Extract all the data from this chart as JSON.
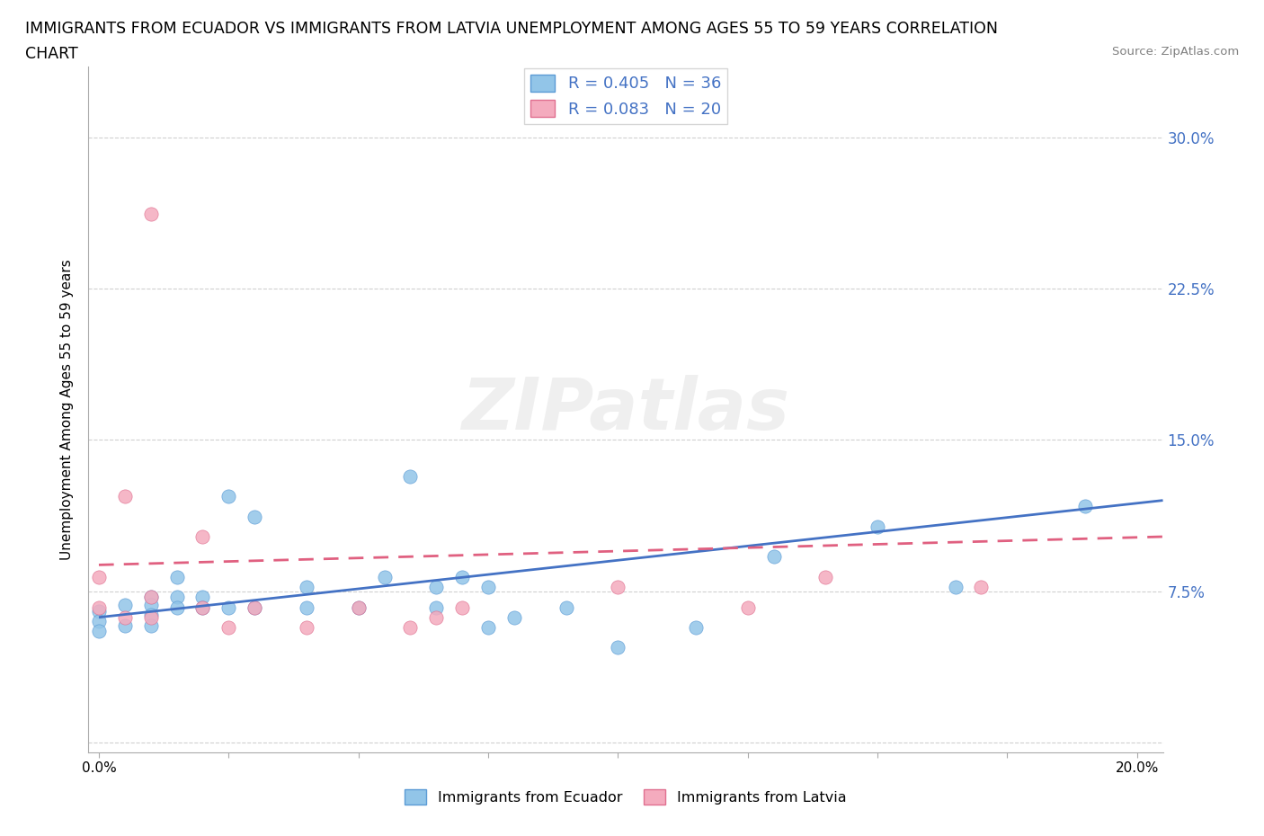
{
  "title_line1": "IMMIGRANTS FROM ECUADOR VS IMMIGRANTS FROM LATVIA UNEMPLOYMENT AMONG AGES 55 TO 59 YEARS CORRELATION",
  "title_line2": "CHART",
  "source": "Source: ZipAtlas.com",
  "ylabel": "Unemployment Among Ages 55 to 59 years",
  "xlim": [
    -0.002,
    0.205
  ],
  "ylim": [
    -0.005,
    0.335
  ],
  "xticks": [
    0.0,
    0.025,
    0.05,
    0.075,
    0.1,
    0.125,
    0.15,
    0.175,
    0.2
  ],
  "xtick_labels_show": [
    0.0,
    0.2
  ],
  "yticks": [
    0.0,
    0.075,
    0.15,
    0.225,
    0.3
  ],
  "ecuador_color": "#92C5E8",
  "ecuador_edge_color": "#5B9BD5",
  "ecuador_line_color": "#4472C4",
  "latvia_color": "#F4ABBE",
  "latvia_edge_color": "#E07090",
  "latvia_line_color": "#E06080",
  "background_color": "#ffffff",
  "grid_color": "#d0d0d0",
  "watermark": "ZIPatlas",
  "ecuador_R": 0.405,
  "ecuador_N": 36,
  "latvia_R": 0.083,
  "latvia_N": 20,
  "ecuador_scatter_x": [
    0.0,
    0.0,
    0.0,
    0.005,
    0.005,
    0.01,
    0.01,
    0.01,
    0.01,
    0.015,
    0.015,
    0.015,
    0.02,
    0.02,
    0.025,
    0.025,
    0.03,
    0.03,
    0.04,
    0.04,
    0.05,
    0.055,
    0.06,
    0.065,
    0.065,
    0.07,
    0.075,
    0.075,
    0.08,
    0.09,
    0.1,
    0.115,
    0.13,
    0.15,
    0.165,
    0.19
  ],
  "ecuador_scatter_y": [
    0.065,
    0.06,
    0.055,
    0.068,
    0.058,
    0.072,
    0.068,
    0.063,
    0.058,
    0.082,
    0.072,
    0.067,
    0.072,
    0.067,
    0.122,
    0.067,
    0.112,
    0.067,
    0.077,
    0.067,
    0.067,
    0.082,
    0.132,
    0.077,
    0.067,
    0.082,
    0.077,
    0.057,
    0.062,
    0.067,
    0.047,
    0.057,
    0.092,
    0.107,
    0.077,
    0.117
  ],
  "latvia_scatter_x": [
    0.0,
    0.0,
    0.005,
    0.005,
    0.01,
    0.01,
    0.01,
    0.02,
    0.02,
    0.025,
    0.03,
    0.04,
    0.05,
    0.06,
    0.065,
    0.07,
    0.1,
    0.125,
    0.14,
    0.17
  ],
  "latvia_scatter_y": [
    0.082,
    0.067,
    0.122,
    0.062,
    0.072,
    0.062,
    0.262,
    0.102,
    0.067,
    0.057,
    0.067,
    0.057,
    0.067,
    0.057,
    0.062,
    0.067,
    0.077,
    0.067,
    0.082,
    0.077
  ],
  "ecuador_trend_x": [
    0.0,
    0.205
  ],
  "ecuador_trend_y": [
    0.062,
    0.12
  ],
  "latvia_trend_x": [
    0.0,
    0.205
  ],
  "latvia_trend_y": [
    0.088,
    0.102
  ],
  "title_fontsize": 12.5,
  "axis_label_fontsize": 11,
  "tick_fontsize": 11,
  "scatter_size": 120
}
